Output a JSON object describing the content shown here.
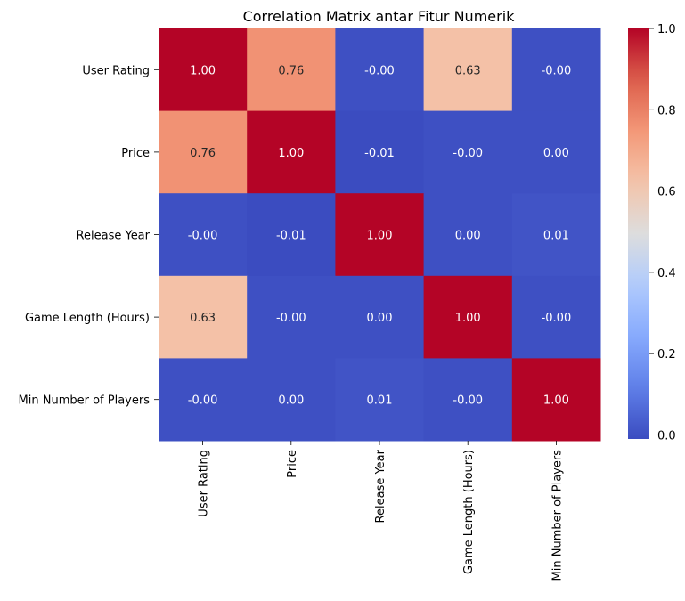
{
  "chart_data": {
    "type": "heatmap",
    "title": "Correlation Matrix antar Fitur Numerik",
    "xlabel": "",
    "ylabel": "",
    "x_categories": [
      "User Rating",
      "Price",
      "Release Year",
      "Game Length (Hours)",
      "Min Number of Players"
    ],
    "y_categories": [
      "User Rating",
      "Price",
      "Release Year",
      "Game Length (Hours)",
      "Min Number of Players"
    ],
    "values": [
      [
        1.0,
        0.76,
        -0.0,
        0.63,
        -0.0
      ],
      [
        0.76,
        1.0,
        -0.01,
        -0.0,
        0.0
      ],
      [
        -0.0,
        -0.01,
        1.0,
        0.0,
        0.01
      ],
      [
        0.63,
        -0.0,
        0.0,
        1.0,
        -0.0
      ],
      [
        -0.0,
        0.0,
        0.01,
        -0.0,
        1.0
      ]
    ],
    "annotations": [
      [
        "1.00",
        "0.76",
        "-0.00",
        "0.63",
        "-0.00"
      ],
      [
        "0.76",
        "1.00",
        "-0.01",
        "-0.00",
        "0.00"
      ],
      [
        "-0.00",
        "-0.01",
        "1.00",
        "0.00",
        "0.01"
      ],
      [
        "0.63",
        "-0.00",
        "0.00",
        "1.00",
        "-0.00"
      ],
      [
        "-0.00",
        "0.00",
        "0.01",
        "-0.00",
        "1.00"
      ]
    ],
    "colormap": "coolwarm",
    "value_range": [
      -0.01,
      1.0
    ],
    "colorbar_ticks": [
      "0.0",
      "0.2",
      "0.4",
      "0.6",
      "0.8",
      "1.0"
    ],
    "colorbar_tick_values": [
      0.0,
      0.2,
      0.4,
      0.6,
      0.8,
      1.0
    ],
    "grid": false,
    "legend": "colorbar-right",
    "colors": {
      "cold": "#3b4cc0",
      "neutral": "#dddddd",
      "hot": "#b40426",
      "annotation_light": "#ffffff",
      "annotation_dark": "#262626"
    }
  }
}
